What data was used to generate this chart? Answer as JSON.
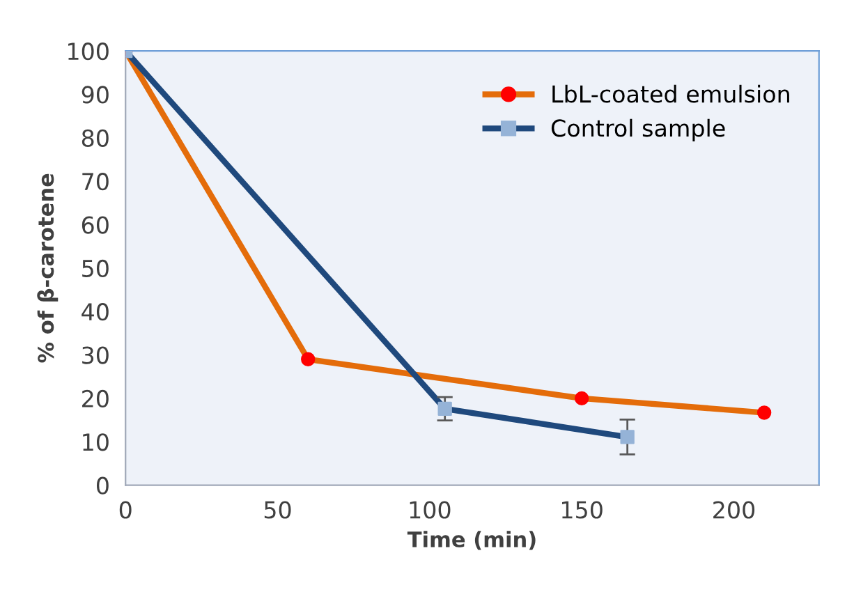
{
  "chart_data": {
    "type": "line",
    "xlabel": "Time (min)",
    "ylabel": "% of β-carotene",
    "xlim": [
      0,
      228
    ],
    "ylim": [
      0,
      100
    ],
    "xticks": [
      0,
      50,
      100,
      150,
      200
    ],
    "yticks": [
      0,
      10,
      20,
      30,
      40,
      50,
      60,
      70,
      80,
      90,
      100
    ],
    "grid": false,
    "legend": "top right",
    "series": [
      {
        "name": "LbL-coated emulsion",
        "color": "#e46c0a",
        "colors": [
          "#ff0000",
          "#ff0000",
          "#ff0000",
          "#ff0000"
        ],
        "marker": "circle",
        "x": [
          0,
          60,
          150,
          210
        ],
        "values": [
          100,
          29,
          20,
          16.7
        ]
      },
      {
        "name": "Control sample",
        "color": "#1f497d",
        "colors": [
          "#95b3d7",
          "#95b3d7",
          "#95b3d7"
        ],
        "marker": "square",
        "x": [
          0,
          105,
          165
        ],
        "values": [
          100,
          17.6,
          11.1
        ],
        "errors": [
          null,
          2.7,
          4
        ]
      }
    ]
  }
}
